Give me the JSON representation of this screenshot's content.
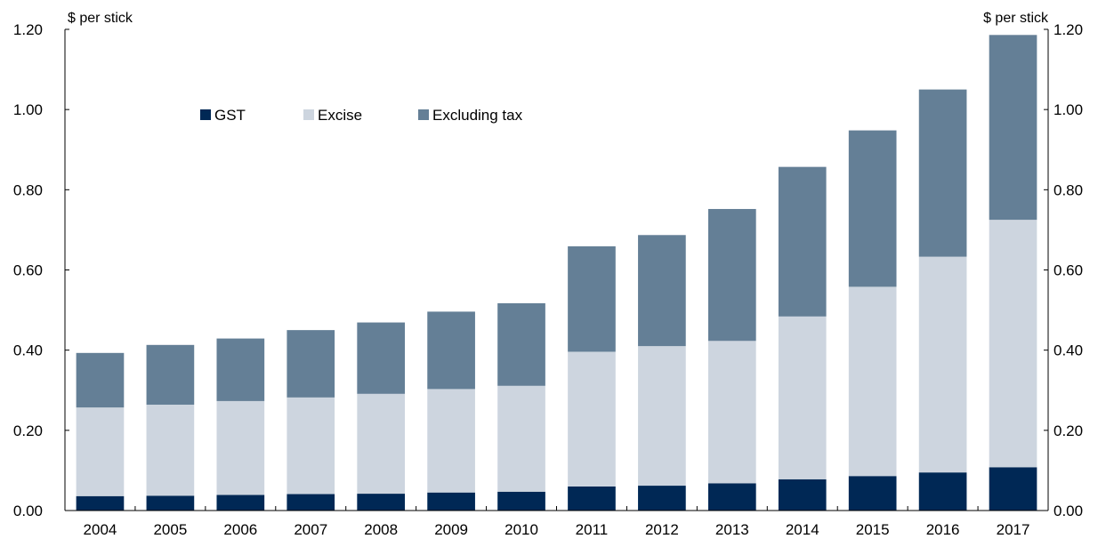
{
  "chart_data": {
    "type": "bar",
    "stacked": true,
    "categories": [
      "2004",
      "2005",
      "2006",
      "2007",
      "2008",
      "2009",
      "2010",
      "2011",
      "2012",
      "2013",
      "2014",
      "2015",
      "2016",
      "2017"
    ],
    "series": [
      {
        "name": "GST",
        "color": "#002855",
        "values": [
          0.036,
          0.037,
          0.039,
          0.041,
          0.042,
          0.045,
          0.047,
          0.06,
          0.062,
          0.068,
          0.078,
          0.086,
          0.095,
          0.108
        ]
      },
      {
        "name": "Excise",
        "color": "#cdd5df",
        "values": [
          0.221,
          0.227,
          0.234,
          0.241,
          0.249,
          0.258,
          0.264,
          0.336,
          0.348,
          0.355,
          0.406,
          0.472,
          0.538,
          0.617
        ]
      },
      {
        "name": "Excluding tax",
        "color": "#647f96",
        "values": [
          0.136,
          0.149,
          0.156,
          0.168,
          0.178,
          0.193,
          0.206,
          0.263,
          0.277,
          0.329,
          0.373,
          0.39,
          0.417,
          0.461
        ]
      }
    ],
    "ylabel_left": "$ per stick",
    "ylabel_right": "$ per stick",
    "ylim": [
      0,
      1.2
    ],
    "yticks": [
      "0.00",
      "0.20",
      "0.40",
      "0.60",
      "0.80",
      "1.00",
      "1.20"
    ],
    "grid": false,
    "legend_position": "top-left"
  }
}
